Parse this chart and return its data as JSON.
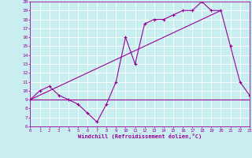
{
  "xlabel": "Windchill (Refroidissement éolien,°C)",
  "xlim": [
    0,
    23
  ],
  "ylim": [
    6,
    20
  ],
  "yticks": [
    6,
    7,
    8,
    9,
    10,
    11,
    12,
    13,
    14,
    15,
    16,
    17,
    18,
    19,
    20
  ],
  "xticks": [
    0,
    1,
    2,
    3,
    4,
    5,
    6,
    7,
    8,
    9,
    10,
    11,
    12,
    13,
    14,
    15,
    16,
    17,
    18,
    19,
    20,
    21,
    22,
    23
  ],
  "bg_color": "#c8eef0",
  "line_color": "#990099",
  "grid_color": "#ffffff",
  "line1_x": [
    0,
    1,
    2,
    3,
    4,
    5,
    6,
    7,
    8,
    9,
    10,
    11,
    12,
    13,
    14,
    15,
    16,
    17,
    18,
    19,
    20,
    21,
    22,
    23
  ],
  "line1_y": [
    9,
    10,
    10.5,
    9.5,
    9,
    8.5,
    7.5,
    6.5,
    8.5,
    11,
    16,
    13,
    17.5,
    18,
    18,
    18.5,
    19,
    19,
    20,
    19,
    19,
    15,
    11,
    9.5
  ],
  "line2_x": [
    0,
    23
  ],
  "line2_y": [
    9,
    9
  ],
  "line3_x": [
    0,
    20
  ],
  "line3_y": [
    9,
    19
  ]
}
